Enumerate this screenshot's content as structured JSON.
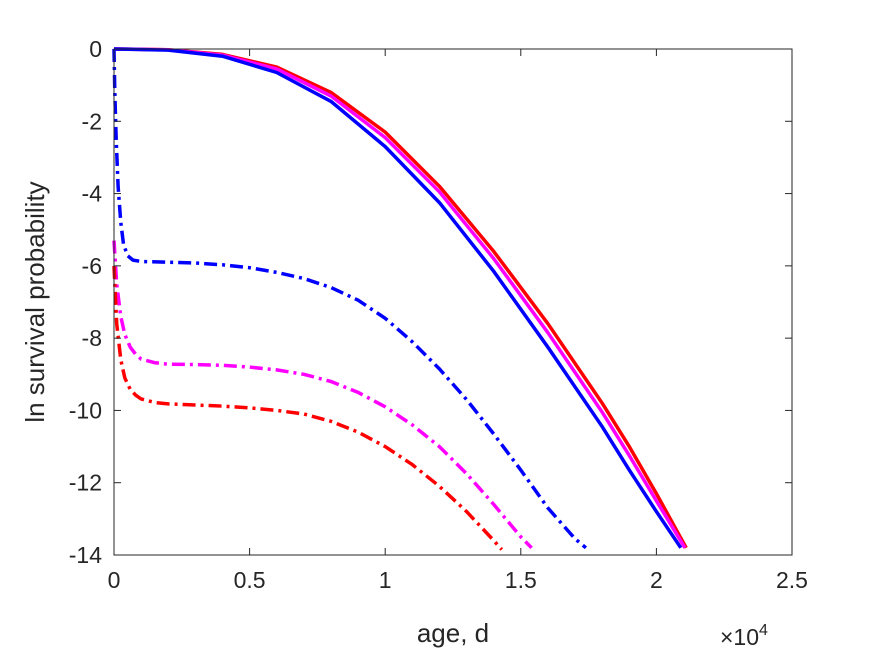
{
  "chart_data": {
    "type": "line",
    "xlabel": "age, d",
    "ylabel": "ln survival probability",
    "x_exponent_label": {
      "base": "×10",
      "exp": "4"
    },
    "xlim": [
      0,
      25000
    ],
    "ylim": [
      -14,
      0
    ],
    "xticks": [
      0,
      5000,
      10000,
      15000,
      20000,
      25000
    ],
    "xtick_labels": [
      "0",
      "0.5",
      "1",
      "1.5",
      "2",
      "2.5"
    ],
    "yticks": [
      0,
      -2,
      -4,
      -6,
      -8,
      -10,
      -12,
      -14
    ],
    "ytick_labels": [
      "0",
      "-2",
      "-4",
      "-6",
      "-8",
      "-10",
      "-12",
      "-14"
    ],
    "grid": false,
    "legend": null,
    "series": [
      {
        "style": "solid",
        "color": "#ff0000",
        "x": [
          0,
          2000,
          4000,
          6000,
          8000,
          10000,
          12000,
          14000,
          16000,
          18000,
          19000,
          20000,
          21100
        ],
        "y": [
          0,
          -0.02,
          -0.15,
          -0.5,
          -1.2,
          -2.3,
          -3.8,
          -5.6,
          -7.6,
          -9.8,
          -11.0,
          -12.3,
          -13.8
        ]
      },
      {
        "style": "solid",
        "color": "#ff00ff",
        "x": [
          0,
          2000,
          4000,
          6000,
          8000,
          10000,
          12000,
          14000,
          16000,
          18000,
          19000,
          20000,
          21050
        ],
        "y": [
          0,
          -0.02,
          -0.17,
          -0.55,
          -1.3,
          -2.45,
          -3.95,
          -5.8,
          -7.85,
          -10.05,
          -11.25,
          -12.5,
          -13.8
        ]
      },
      {
        "style": "solid",
        "color": "#0000ff",
        "x": [
          0,
          2000,
          4000,
          6000,
          8000,
          10000,
          12000,
          14000,
          16000,
          18000,
          19000,
          20000,
          20900
        ],
        "y": [
          0,
          -0.03,
          -0.2,
          -0.65,
          -1.45,
          -2.7,
          -4.25,
          -6.15,
          -8.25,
          -10.45,
          -11.65,
          -12.8,
          -13.8
        ]
      },
      {
        "style": "dashdot",
        "color": "#0000ff",
        "x": [
          0,
          30,
          80,
          150,
          250,
          350,
          500,
          700,
          1000,
          2000,
          3000,
          4000,
          5000,
          6000,
          7000,
          8000,
          9000,
          10000,
          11000,
          12000,
          13000,
          14000,
          15000,
          16000,
          17000,
          17400
        ],
        "y": [
          0,
          -1.2,
          -2.5,
          -3.8,
          -4.8,
          -5.4,
          -5.72,
          -5.84,
          -5.88,
          -5.9,
          -5.92,
          -5.97,
          -6.05,
          -6.18,
          -6.35,
          -6.6,
          -6.95,
          -7.45,
          -8.1,
          -8.85,
          -9.7,
          -10.65,
          -11.65,
          -12.7,
          -13.55,
          -13.8
        ]
      },
      {
        "style": "dashdot",
        "color": "#ff00ff",
        "x": [
          0,
          100,
          250,
          400,
          600,
          800,
          1000,
          1500,
          2000,
          3000,
          4000,
          5000,
          6000,
          7000,
          8000,
          9000,
          10000,
          11000,
          12000,
          13000,
          14000,
          15000,
          15400
        ],
        "y": [
          -5.3,
          -6.5,
          -7.4,
          -7.9,
          -8.25,
          -8.45,
          -8.58,
          -8.68,
          -8.72,
          -8.73,
          -8.75,
          -8.8,
          -8.88,
          -9.0,
          -9.2,
          -9.5,
          -9.9,
          -10.4,
          -11.0,
          -11.75,
          -12.6,
          -13.5,
          -13.8
        ]
      },
      {
        "style": "dashdot",
        "color": "#ff0000",
        "x": [
          0,
          100,
          250,
          400,
          600,
          800,
          1000,
          1500,
          2000,
          3000,
          4000,
          5000,
          6000,
          7000,
          8000,
          9000,
          10000,
          11000,
          12000,
          13000,
          14000,
          14300
        ],
        "y": [
          -6.0,
          -7.6,
          -8.6,
          -9.1,
          -9.42,
          -9.58,
          -9.68,
          -9.78,
          -9.82,
          -9.85,
          -9.88,
          -9.93,
          -10.0,
          -10.1,
          -10.3,
          -10.6,
          -11.0,
          -11.5,
          -12.1,
          -12.8,
          -13.6,
          -13.85
        ]
      }
    ]
  }
}
